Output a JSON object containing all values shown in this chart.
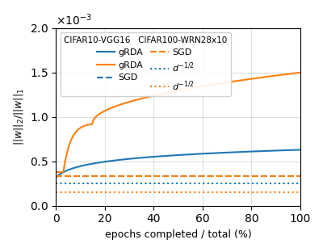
{
  "title": "",
  "xlabel": "epochs completed / total (%)",
  "ylabel": "||w||_2/||w||_1",
  "xlim": [
    0,
    100
  ],
  "ylim": [
    0.0,
    0.002
  ],
  "blue_color": "#1f77b4",
  "orange_color": "#ff7f0e",
  "blue_sgd_value": 0.000335,
  "orange_sgd_value": 0.000335,
  "blue_d_inv_sqrt": 0.000255,
  "orange_d_inv_sqrt": 0.000155,
  "legend_col1_title": "CIFAR10-VGG16",
  "legend_col2_title": "CIFAR100-WRN28x10",
  "legend_grda": "gRDA",
  "legend_sgd": "SGD",
  "legend_d": "$d^{-1/2}$",
  "yticks": [
    0.0,
    0.0005,
    0.001,
    0.0015,
    0.002
  ]
}
